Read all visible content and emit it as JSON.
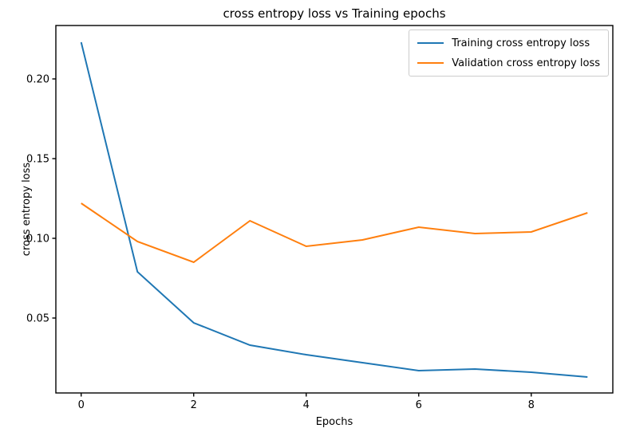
{
  "chart_data": {
    "type": "line",
    "title": "cross entropy loss vs Training epochs",
    "xlabel": "Epochs",
    "ylabel": "cross entropy loss",
    "x": [
      0,
      1,
      2,
      3,
      4,
      5,
      6,
      7,
      8,
      9
    ],
    "series": [
      {
        "name": "Training cross entropy loss",
        "color": "#1f77b4",
        "values": [
          0.223,
          0.079,
          0.047,
          0.033,
          0.027,
          0.022,
          0.017,
          0.018,
          0.016,
          0.013
        ]
      },
      {
        "name": "Validation cross entropy loss",
        "color": "#ff7f0e",
        "values": [
          0.122,
          0.098,
          0.085,
          0.111,
          0.095,
          0.099,
          0.107,
          0.103,
          0.104,
          0.116
        ]
      }
    ],
    "xlim": [
      -0.45,
      9.45
    ],
    "ylim": [
      0.003,
      0.2335
    ],
    "xticks": [
      0,
      2,
      4,
      6,
      8
    ],
    "xtick_labels": [
      "0",
      "2",
      "4",
      "6",
      "8"
    ],
    "yticks": [
      0.05,
      0.1,
      0.15,
      0.2
    ],
    "ytick_labels": [
      "0.05",
      "0.10",
      "0.15",
      "0.20"
    ],
    "grid": false,
    "legend_position": "upper right",
    "axis_color": "#000000",
    "background_color": "#ffffff"
  }
}
